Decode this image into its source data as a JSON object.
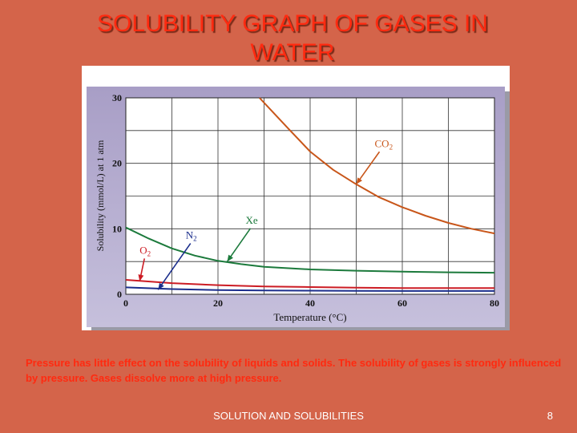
{
  "slide": {
    "title_line1": "SOLUBILITY GRAPH OF GASES IN",
    "title_line2": "WATER",
    "note": "Pressure has little effect on the solubility of liquids and solids. The solubility of gases is strongly influenced by pressure. Gases dissolve more at high pressure.",
    "footer": "SOLUTION AND SOLUBILITIES",
    "page_number": "8"
  },
  "colors": {
    "background": "#d4644a",
    "title": "#ff2a10",
    "panel": "#aca2c8",
    "co2": "#c8561a",
    "xe": "#1c7a3c",
    "n2": "#1b2e8c",
    "o2": "#cc1c24"
  },
  "chart_data": {
    "type": "line",
    "title": "",
    "xlabel": "Temperature (°C)",
    "ylabel": "Solubility (mmol/L) at 1 atm",
    "xlim": [
      0,
      80
    ],
    "ylim": [
      0,
      30
    ],
    "xticks": [
      "0",
      "20",
      "40",
      "60",
      "80"
    ],
    "yticks": [
      "0",
      "10",
      "20",
      "30"
    ],
    "grid": true,
    "series": [
      {
        "name": "CO2",
        "label_main": "CO",
        "label_sub": "2",
        "color": "#c8561a",
        "x": [
          29,
          35,
          40,
          45,
          50,
          55,
          60,
          65,
          70,
          75,
          80
        ],
        "y": [
          30,
          25.5,
          21.8,
          19,
          16.8,
          14.8,
          13.3,
          12,
          10.9,
          10,
          9.3
        ]
      },
      {
        "name": "Xe",
        "label_main": "Xe",
        "label_sub": "",
        "color": "#1c7a3c",
        "x": [
          0,
          5,
          10,
          15,
          20,
          25,
          30,
          40,
          50,
          60,
          70,
          80
        ],
        "y": [
          10.2,
          8.5,
          7.0,
          5.9,
          5.1,
          4.6,
          4.2,
          3.8,
          3.6,
          3.45,
          3.35,
          3.3
        ]
      },
      {
        "name": "O2",
        "label_main": "O",
        "label_sub": "2",
        "color": "#cc1c24",
        "x": [
          0,
          10,
          20,
          30,
          40,
          50,
          60,
          70,
          80
        ],
        "y": [
          2.2,
          1.7,
          1.4,
          1.2,
          1.1,
          1.0,
          0.95,
          0.95,
          0.95
        ]
      },
      {
        "name": "N2",
        "label_main": "N",
        "label_sub": "2",
        "color": "#1b2e8c",
        "x": [
          0,
          10,
          20,
          30,
          40,
          50,
          60,
          70,
          80
        ],
        "y": [
          1.05,
          0.8,
          0.65,
          0.58,
          0.55,
          0.52,
          0.5,
          0.5,
          0.5
        ]
      }
    ],
    "annotations": [
      {
        "series": "CO2",
        "label_x": 54,
        "label_y": 22.5,
        "point_x": 50,
        "point_y": 16.8
      },
      {
        "series": "Xe",
        "label_x": 26,
        "label_y": 10.8,
        "point_x": 22,
        "point_y": 5.0
      },
      {
        "series": "N2",
        "label_x": 13,
        "label_y": 8.5,
        "point_x": 7,
        "point_y": 0.7
      },
      {
        "series": "O2",
        "label_x": 3,
        "label_y": 6.2,
        "point_x": 3,
        "point_y": 2.0
      }
    ]
  }
}
